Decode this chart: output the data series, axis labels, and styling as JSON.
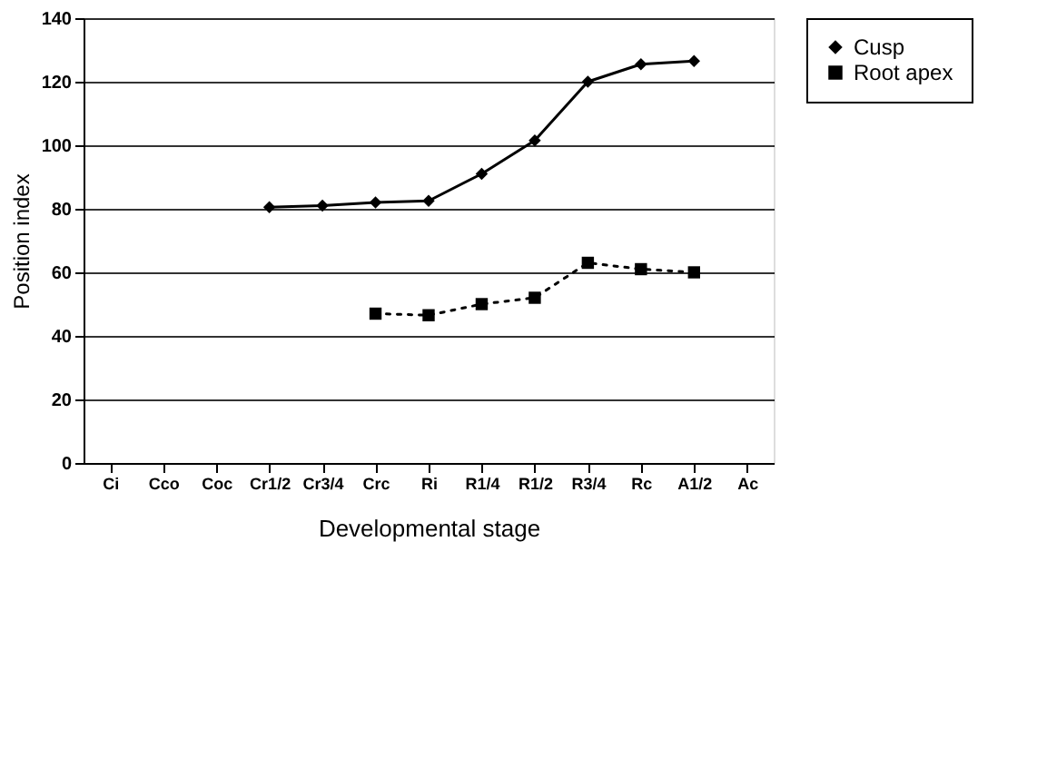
{
  "chart_data": {
    "type": "line",
    "xlabel": "Developmental stage",
    "ylabel": "Position index",
    "categories": [
      "Ci",
      "Cco",
      "Coc",
      "Cr1/2",
      "Cr3/4",
      "Crc",
      "Ri",
      "R1/4",
      "R1/2",
      "R3/4",
      "Rc",
      "A1/2",
      "Ac"
    ],
    "series": [
      {
        "name": "Cusp",
        "color": "#000000",
        "marker": "diamond",
        "line_style": "solid",
        "values": [
          null,
          null,
          null,
          80.5,
          81,
          82,
          82.5,
          91,
          101.5,
          120,
          125.5,
          126.5,
          null
        ]
      },
      {
        "name": "Root apex",
        "color": "#000000",
        "marker": "square",
        "line_style": "dotted",
        "values": [
          null,
          null,
          null,
          null,
          null,
          47,
          46.5,
          50,
          52,
          63,
          61,
          60,
          null
        ]
      }
    ],
    "ylim": [
      0,
      140
    ],
    "yticks": [
      0,
      20,
      40,
      60,
      80,
      100,
      120,
      140
    ],
    "grid": "y",
    "legend": "right"
  }
}
